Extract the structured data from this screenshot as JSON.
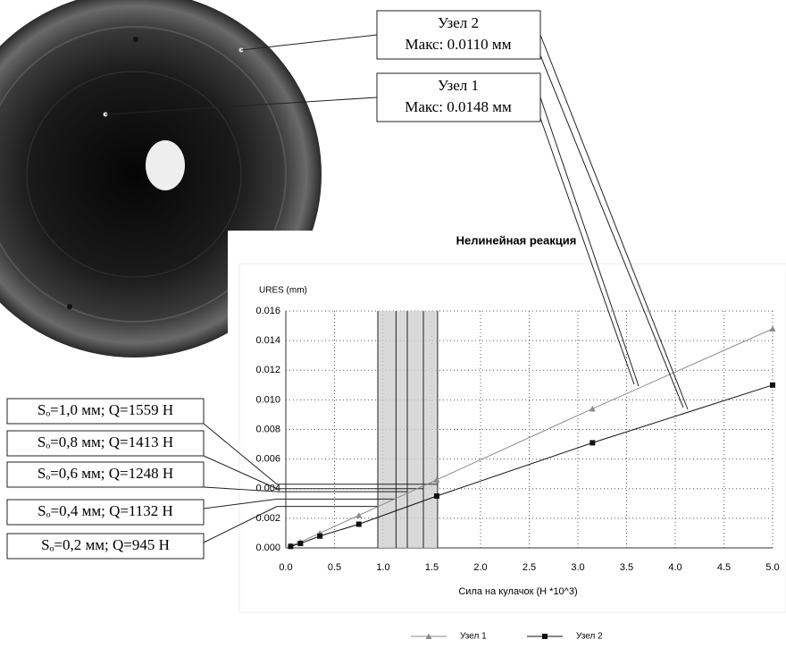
{
  "chart_data": {
    "type": "line",
    "title": "Нелинейная реакция",
    "xlabel": "Сила на кулачок (Н *10^3)",
    "ylabel": "URES (mm)",
    "x": [
      0.05,
      0.15,
      0.35,
      0.75,
      1.55,
      3.15,
      5.0
    ],
    "series": [
      {
        "name": "Узел 1",
        "color": "#8a8a8a",
        "marker": "triangle",
        "values": [
          0.00015,
          0.0004,
          0.001,
          0.0022,
          0.0046,
          0.0094,
          0.0148
        ]
      },
      {
        "name": "Узел 2",
        "color": "#111111",
        "marker": "square",
        "values": [
          0.0001,
          0.0003,
          0.0008,
          0.0016,
          0.0035,
          0.0071,
          0.011
        ]
      }
    ],
    "xlim": [
      0,
      5
    ],
    "ylim": [
      0,
      0.016
    ],
    "xticks": [
      {
        "value": 0,
        "label": "0.0"
      },
      0.5,
      {
        "value": 1,
        "label": "1.0"
      },
      1.5,
      {
        "value": 2,
        "label": "2.0"
      },
      2.5,
      {
        "value": 3,
        "label": "3.0"
      },
      3.5,
      {
        "value": 4,
        "label": "4.0"
      },
      4.5,
      {
        "value": 5,
        "label": "5.0"
      }
    ],
    "yticks": [
      {
        "value": 0,
        "label": "0.000"
      },
      0.002,
      0.004,
      0.006,
      0.008,
      {
        "value": 0.01,
        "label": "0.010"
      },
      0.012,
      0.014,
      0.016
    ],
    "grid": true,
    "legend": "bottom",
    "node_callouts": [
      {
        "name": "Узел 2",
        "text": "Макс: 0.0110 мм"
      },
      {
        "name": "Узел 1",
        "text": "Макс: 0.0148 мм"
      }
    ],
    "load_cases": [
      {
        "label": "Sₒ=1,0 мм; Q=1559 Н",
        "x": 1.559,
        "y": 0.0043
      },
      {
        "label": "Sₒ=0,8 мм; Q=1413 Н",
        "x": 1.413,
        "y": 0.004
      },
      {
        "label": "Sₒ=0,6 мм; Q=1248 Н",
        "x": 1.248,
        "y": 0.0038
      },
      {
        "label": "Sₒ=0,4 мм; Q=1132 Н",
        "x": 1.132,
        "y": 0.0033
      },
      {
        "label": "Sₒ=0,2 мм; Q=945 Н",
        "x": 0.945,
        "y": 0.0028
      }
    ]
  }
}
